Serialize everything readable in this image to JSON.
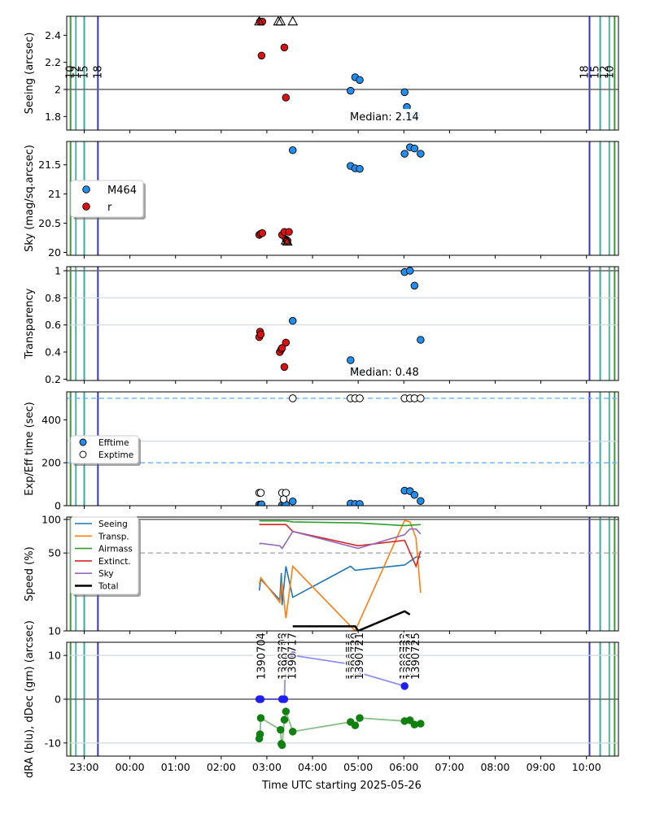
{
  "xaxis": {
    "xlabel": "Time UTC starting 2025-05-26",
    "ticks": [
      {
        "v": -60,
        "label": "23:00"
      },
      {
        "v": 0,
        "label": "00:00"
      },
      {
        "v": 60,
        "label": "01:00"
      },
      {
        "v": 120,
        "label": "02:00"
      },
      {
        "v": 180,
        "label": "03:00"
      },
      {
        "v": 240,
        "label": "04:00"
      },
      {
        "v": 300,
        "label": "05:00"
      },
      {
        "v": 360,
        "label": "06:00"
      },
      {
        "v": 420,
        "label": "07:00"
      },
      {
        "v": 480,
        "label": "08:00"
      },
      {
        "v": 540,
        "label": "09:00"
      },
      {
        "v": 600,
        "label": "10:00"
      }
    ],
    "xlim": [
      -83,
      642
    ]
  },
  "twilight": {
    "evening": [
      {
        "v": -78,
        "label": "10",
        "color": "#3a9a3a"
      },
      {
        "v": -71,
        "label": "12",
        "color": "#4fb3a0"
      },
      {
        "v": -60,
        "label": "15",
        "color": "#3aa9a0"
      },
      {
        "v": -42,
        "label": "18",
        "color": "#3333dd"
      }
    ],
    "morning": [
      {
        "v": 604,
        "label": "18",
        "color": "#3333dd"
      },
      {
        "v": 618,
        "label": "15",
        "color": "#3aa9a0"
      },
      {
        "v": 630,
        "label": "12",
        "color": "#4fb3a0"
      },
      {
        "v": 637,
        "label": "10",
        "color": "#3a9a3a"
      }
    ]
  },
  "colors": {
    "M464": "#1f8ff0",
    "r": "#dd1111",
    "efft": "#1f8ff0"
  },
  "chart_data": [
    {
      "type": "scatter",
      "ylabel": "Seeing (arcsec)",
      "ylim": [
        1.7,
        2.54
      ],
      "yticks": [
        1.8,
        2.0,
        2.2,
        2.4
      ],
      "hlines": [
        2.0
      ],
      "annotation": "Median: 2.14",
      "series": [
        {
          "name": "r",
          "marker": "circle",
          "x": [
            171,
            173,
            174,
            203,
            205
          ],
          "y": [
            2.5,
            2.25,
            2.5,
            2.31,
            1.94
          ]
        },
        {
          "name": "M464",
          "marker": "circle",
          "x": [
            290,
            296,
            302,
            361,
            364,
            369,
            376
          ],
          "y": [
            1.99,
            2.09,
            2.07,
            1.98,
            1.87,
            1.8,
            1.81
          ]
        },
        {
          "name": "",
          "marker": "triangle-open",
          "x": [
            170,
            195,
            198,
            214
          ],
          "y": [
            2.5,
            2.5,
            2.5,
            2.5
          ]
        }
      ]
    },
    {
      "type": "scatter",
      "ylabel": "Sky (mag/sq.arcsec)",
      "ylim": [
        19.95,
        21.9
      ],
      "yticks": [
        20.0,
        20.5,
        21.0,
        21.5
      ],
      "legend": {
        "position": "center-left",
        "entries": [
          "M464",
          "r"
        ]
      },
      "series": [
        {
          "name": "M464",
          "marker": "circle",
          "x": [
            214,
            290,
            296,
            302,
            361,
            368,
            374,
            382
          ],
          "y": [
            21.75,
            21.48,
            21.44,
            21.43,
            21.69,
            21.8,
            21.78,
            21.69
          ]
        },
        {
          "name": "r",
          "marker": "circle",
          "x": [
            170,
            172,
            174,
            200,
            203,
            205,
            207,
            209
          ],
          "y": [
            20.3,
            20.32,
            20.33,
            20.3,
            20.35,
            20.22,
            20.2,
            20.35
          ]
        },
        {
          "name": "",
          "marker": "triangle-open",
          "x": [
            205,
            207
          ],
          "y": [
            20.2,
            20.18
          ]
        }
      ]
    },
    {
      "type": "scatter",
      "ylabel": "Transparency",
      "ylim": [
        0.19,
        1.03
      ],
      "yticks": [
        0.2,
        0.4,
        0.6,
        0.8,
        1.0
      ],
      "hlines": [
        1.0
      ],
      "gridlines": [
        0.8,
        0.6
      ],
      "annotation": "Median: 0.48",
      "series": [
        {
          "name": "r",
          "marker": "circle",
          "x": [
            170,
            171,
            172,
            197,
            199,
            200,
            203,
            205
          ],
          "y": [
            0.51,
            0.55,
            0.53,
            0.4,
            0.42,
            0.43,
            0.29,
            0.47
          ]
        },
        {
          "name": "M464",
          "marker": "circle",
          "x": [
            214,
            290,
            296,
            302,
            361,
            368,
            374,
            382
          ],
          "y": [
            0.63,
            0.34,
            0.26,
            0.25,
            0.99,
            1.0,
            0.89,
            0.49
          ]
        }
      ]
    },
    {
      "type": "scatter",
      "ylabel": "Exp/Eff time (sec)",
      "ylim": [
        0,
        530
      ],
      "yticks": [
        0,
        200,
        400
      ],
      "hlines_dashed": [
        500,
        200
      ],
      "gridlines": [
        300
      ],
      "legend": {
        "position": "center-left",
        "entries": [
          "Efftime",
          "Exptime"
        ]
      },
      "series": [
        {
          "name": "Efftime",
          "marker": "circle",
          "x": [
            170,
            172,
            173,
            200,
            203,
            205,
            214,
            290,
            296,
            302,
            361,
            368,
            374,
            382
          ],
          "y": [
            5,
            4,
            6,
            3,
            4,
            5,
            20,
            10,
            8,
            8,
            70,
            68,
            50,
            22
          ]
        },
        {
          "name": "Exptime",
          "marker": "circle-open",
          "x": [
            170,
            172,
            200,
            205,
            202,
            214,
            290,
            296,
            302,
            361,
            368,
            374,
            382
          ],
          "y": [
            60,
            60,
            60,
            60,
            30,
            500,
            500,
            500,
            500,
            500,
            500,
            500,
            500
          ]
        }
      ]
    },
    {
      "type": "line",
      "ylabel": "Speed (%)",
      "ylim": [
        10,
        105
      ],
      "yticks": [
        10,
        50,
        100
      ],
      "hlines": [
        100
      ],
      "hlines_dashed": [
        50
      ],
      "legend": {
        "position": "top-left",
        "entries": [
          "Seeing",
          "Transp.",
          "Airmass",
          "Extinct.",
          "Sky",
          "Total"
        ]
      },
      "series": [
        {
          "name": "Seeing",
          "color": "#1f77b4",
          "x": [
            170,
            172,
            197,
            199,
            200,
            205,
            214,
            290,
            296,
            361,
            376,
            382
          ],
          "y": [
            23,
            29,
            19,
            33,
            17,
            38,
            20,
            38,
            35,
            39,
            46,
            46
          ]
        },
        {
          "name": "Transp.",
          "color": "#ff7f0e",
          "x": [
            170,
            172,
            197,
            200,
            205,
            214,
            296,
            361,
            368,
            376,
            382
          ],
          "y": [
            26,
            30,
            18,
            27,
            13,
            38,
            10,
            98,
            95,
            68,
            22
          ]
        },
        {
          "name": "Airmass",
          "color": "#2ca02c",
          "x": [
            170,
            205,
            214,
            300,
            361,
            382
          ],
          "y": [
            97,
            97,
            95,
            93,
            88,
            90
          ]
        },
        {
          "name": "Extinct.",
          "color": "#d62728",
          "x": [
            170,
            205,
            214,
            300,
            361,
            376,
            382
          ],
          "y": [
            90,
            90,
            78,
            58,
            65,
            38,
            52
          ]
        },
        {
          "name": "Sky",
          "color": "#9467bd",
          "x": [
            170,
            172,
            197,
            200,
            205,
            214,
            300,
            361,
            368,
            376,
            382
          ],
          "y": [
            60,
            61,
            58,
            55,
            62,
            78,
            55,
            73,
            82,
            82,
            74
          ]
        },
        {
          "name": "Total",
          "color": "#000000",
          "x": [
            214,
            296,
            300,
            361,
            368
          ],
          "y": [
            11,
            11,
            10,
            15,
            14
          ]
        }
      ]
    },
    {
      "type": "scatter",
      "ylabel": "dRA (blu), dDec (grn) (arcsec)",
      "ylim": [
        -13,
        13
      ],
      "yticks": [
        -10,
        0,
        10
      ],
      "hlines": [
        0
      ],
      "gridlines": [
        10,
        -10
      ],
      "frame_labels": [
        "1390701",
        "1390702",
        "1390703",
        "1390704",
        "1390705",
        "1390706",
        "1390707",
        "1390708",
        "1390713",
        "1390717",
        "1390718",
        "1390719",
        "1390720",
        "1390721",
        "1390722",
        "1390723",
        "1390724",
        "1390725"
      ],
      "frame_label_x": [
        170,
        171,
        172,
        173,
        198,
        199,
        200,
        201,
        205,
        214,
        290,
        293,
        296,
        302,
        361,
        365,
        369,
        376
      ],
      "series": [
        {
          "name": "dRA",
          "marker": "circle",
          "color": "#2020ee",
          "x": [
            170,
            172,
            200,
            203,
            205,
            214,
            290,
            296,
            302,
            361
          ],
          "y": [
            0,
            0,
            0,
            0,
            11,
            10,
            8,
            7,
            6,
            3
          ]
        },
        {
          "name": "dDec",
          "marker": "circle",
          "color": "#108010",
          "x": [
            170,
            171,
            172,
            198,
            199,
            200,
            203,
            205,
            214,
            290,
            296,
            302,
            361,
            368,
            374,
            382
          ],
          "y": [
            -9,
            -8,
            -4.3,
            -7,
            -10.2,
            -10.5,
            -4.7,
            -2.8,
            -7.4,
            -5.2,
            -6,
            -4.3,
            -5,
            -4.8,
            -5.8,
            -5.6
          ]
        }
      ]
    }
  ]
}
